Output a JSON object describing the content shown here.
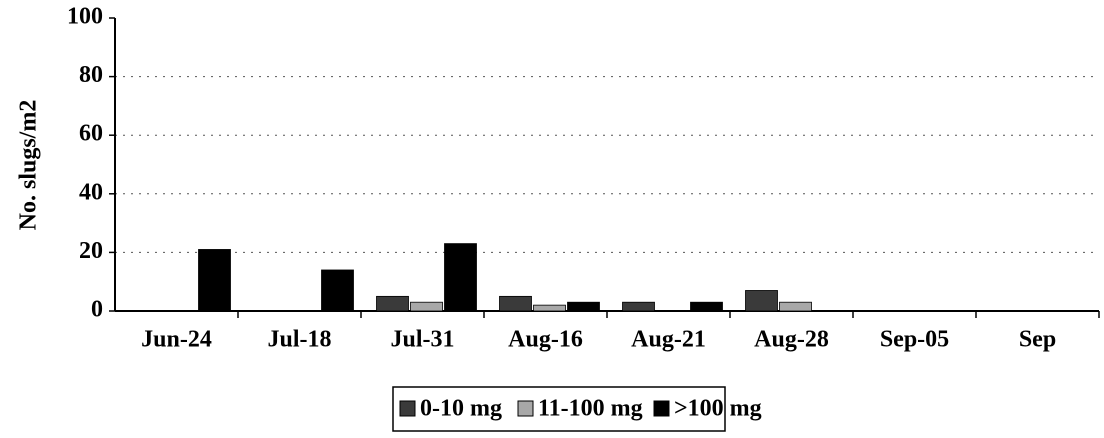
{
  "chart_data": {
    "type": "bar",
    "y_label": "No. slugs/m2",
    "categories": [
      "Jun-24",
      "Jul-18",
      "Jul-31",
      "Aug-16",
      "Aug-21",
      "Aug-28",
      "Sep-05",
      "Sep"
    ],
    "series": [
      {
        "name": "0-10 mg",
        "color": "#3a3a3a",
        "values": [
          0,
          0,
          5,
          5,
          3,
          7,
          0,
          0
        ]
      },
      {
        "name": "11-100 mg",
        "color": "#a8a8a8",
        "values": [
          0,
          0,
          3,
          2,
          0,
          3,
          0,
          0
        ]
      },
      {
        "name": ">100 mg",
        "color": "#000000",
        "values": [
          21,
          14,
          23,
          3,
          3,
          0,
          0,
          0
        ]
      }
    ],
    "ylim": [
      0,
      100
    ],
    "yticks": [
      0,
      20,
      40,
      60,
      80,
      100
    ],
    "grid": true
  }
}
